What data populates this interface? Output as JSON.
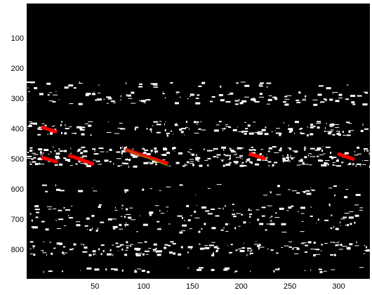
{
  "chart_data": {
    "type": "image",
    "xlim": [
      -20,
      332
    ],
    "ylim": [
      895,
      -16
    ],
    "y_reversed": true,
    "xticks": [
      50,
      100,
      150,
      200,
      250,
      300
    ],
    "yticks": [
      100,
      200,
      300,
      400,
      500,
      600,
      700,
      800
    ],
    "background": "#000000",
    "pixel_color": "#ffffff",
    "lines": [
      {
        "color": "#ff0000",
        "x": [
          -5,
          11
        ],
        "y": [
          393,
          409
        ]
      },
      {
        "color": "#ff0000",
        "x": [
          -5,
          12
        ],
        "y": [
          493,
          509
        ]
      },
      {
        "color": "#ff0000",
        "x": [
          23,
          49
        ],
        "y": [
          486,
          516
        ]
      },
      {
        "color": "#ff0000",
        "x": [
          81,
          125
        ],
        "y": [
          467,
          514
        ]
      },
      {
        "color": "#808000",
        "x": [
          81,
          125
        ],
        "y": [
          467,
          521
        ]
      },
      {
        "color": "#ff0000",
        "x": [
          208,
          225
        ],
        "y": [
          481,
          498
        ]
      },
      {
        "color": "#ff0000",
        "x": [
          299,
          316
        ],
        "y": [
          481,
          500
        ]
      }
    ]
  }
}
